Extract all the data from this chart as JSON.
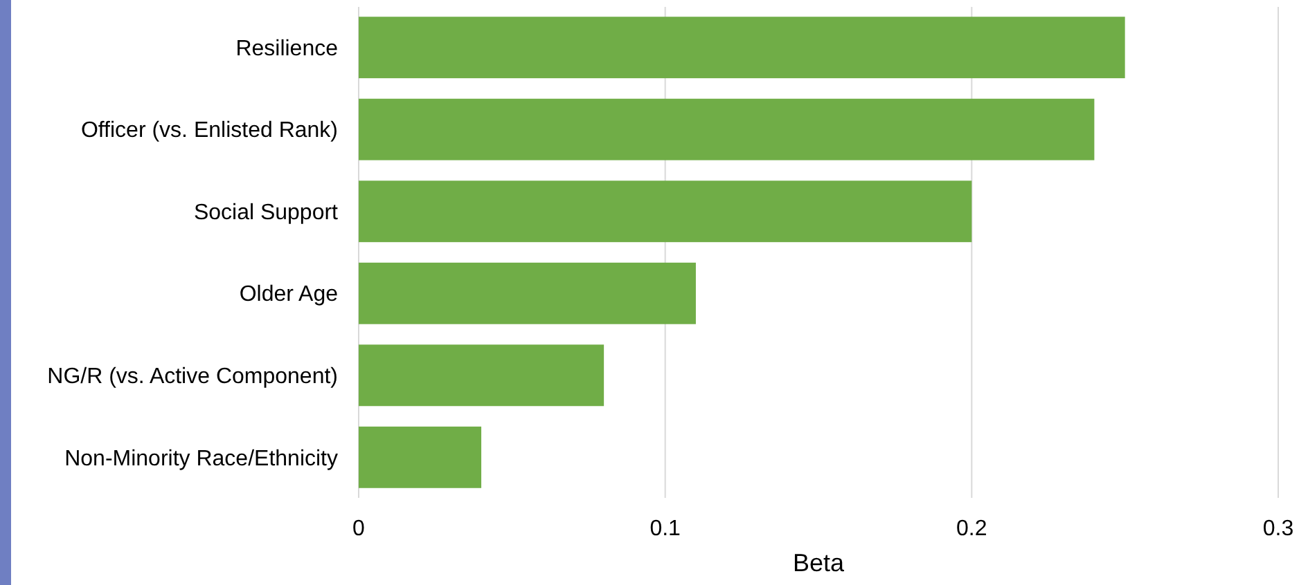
{
  "chart_data": {
    "type": "bar",
    "orientation": "horizontal",
    "xlabel": "Beta",
    "categories": [
      "Resilience",
      "Officer (vs. Enlisted Rank)",
      "Social Support",
      "Older Age",
      "NG/R (vs. Active Component)",
      "Non-Minority Race/Ethnicity"
    ],
    "values": [
      0.25,
      0.24,
      0.2,
      0.11,
      0.08,
      0.04
    ],
    "color": "#70ad47",
    "xlim": [
      0,
      0.3
    ],
    "xticks": [
      0,
      0.1,
      0.2,
      0.3
    ],
    "grid": "x"
  }
}
